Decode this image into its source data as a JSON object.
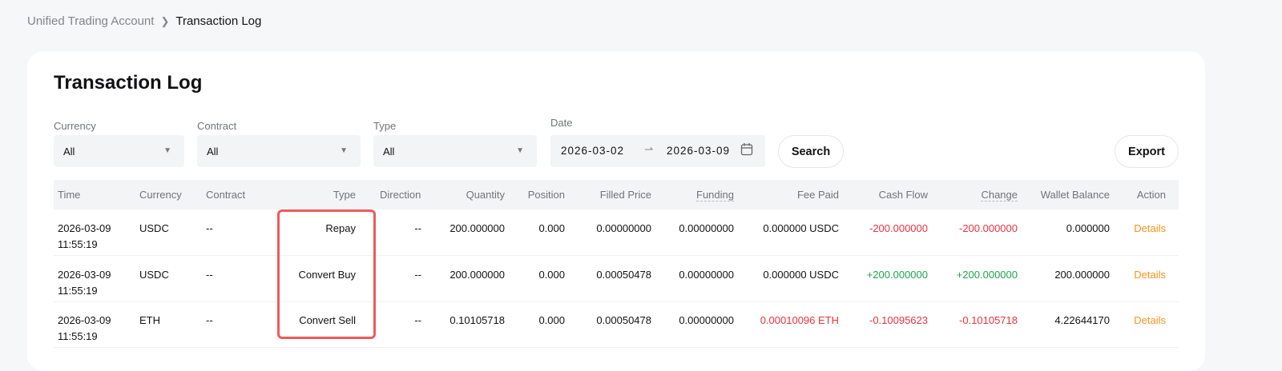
{
  "breadcrumb": {
    "parent": "Unified Trading Account",
    "current": "Transaction Log"
  },
  "title": "Transaction Log",
  "filters": {
    "currency": {
      "label": "Currency",
      "value": "All"
    },
    "contract": {
      "label": "Contract",
      "value": "All"
    },
    "type": {
      "label": "Type",
      "value": "All"
    },
    "date": {
      "label": "Date",
      "start": "2026-03-02",
      "end": "2026-03-09"
    },
    "search_label": "Search",
    "export_label": "Export"
  },
  "table": {
    "headers": [
      "Time",
      "Currency",
      "Contract",
      "Type",
      "Direction",
      "Quantity",
      "Position",
      "Filled Price",
      "Funding",
      "Fee Paid",
      "Cash Flow",
      "Change",
      "Wallet Balance",
      "Action"
    ],
    "rows": [
      {
        "date": "2026-03-09",
        "time": "11:55:19",
        "currency": "USDC",
        "contract": "--",
        "type": "Repay",
        "direction": "--",
        "quantity": "200.000000",
        "position": "0.000",
        "filled_price": "0.00000000",
        "funding": "0.00000000",
        "fee_paid": "0.000000 USDC",
        "cash_flow": "-200.000000",
        "change": "-200.000000",
        "wallet_balance": "0.000000",
        "action": "Details"
      },
      {
        "date": "2026-03-09",
        "time": "11:55:19",
        "currency": "USDC",
        "contract": "--",
        "type": "Convert Buy",
        "direction": "--",
        "quantity": "200.000000",
        "position": "0.000",
        "filled_price": "0.00050478",
        "funding": "0.00000000",
        "fee_paid": "0.000000 USDC",
        "cash_flow": "+200.000000",
        "change": "+200.000000",
        "wallet_balance": "200.000000",
        "action": "Details"
      },
      {
        "date": "2026-03-09",
        "time": "11:55:19",
        "currency": "ETH",
        "contract": "--",
        "type": "Convert Sell",
        "direction": "--",
        "quantity": "0.10105718",
        "position": "0.000",
        "filled_price": "0.00050478",
        "funding": "0.00000000",
        "fee_paid": "0.00010096 ETH",
        "cash_flow": "-0.10095623",
        "change": "-0.10105718",
        "wallet_balance": "4.22644170",
        "action": "Details"
      }
    ]
  },
  "colors": {
    "negative": "#e8333d",
    "positive": "#1ea54a",
    "action": "#f7931a",
    "highlight": "#ef5a5a"
  }
}
